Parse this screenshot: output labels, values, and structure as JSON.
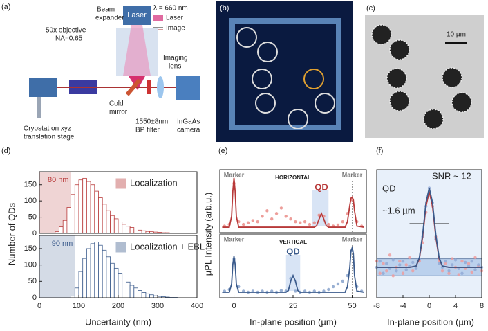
{
  "panel_labels": [
    "(a)",
    "(b)",
    "(c)"
  ],
  "setup": {
    "laser": "Laser",
    "wavelength": "λ = 660 nm",
    "legend": [
      "Laser",
      "Image"
    ],
    "beam_expander": [
      "Beam",
      "expander"
    ],
    "objective": [
      "50x objective",
      "NA=0.65"
    ],
    "imaging_lens": [
      "Imaging",
      "lens"
    ],
    "cold_mirror": [
      "Cold",
      "mirror"
    ],
    "filter": [
      "1550±8nm",
      "BP filter"
    ],
    "camera": [
      "InGaAs",
      "camera"
    ],
    "cryostat": [
      "Cryostat on xyz",
      "translation stage"
    ]
  },
  "scale_bar": "10 µm",
  "chart_data": [
    {
      "type": "histogram",
      "label": "(d)",
      "xlabel": "Uncertainty (nm)",
      "ylabel": "Number of QDs",
      "bins": [
        0,
        10,
        20,
        30,
        40,
        50,
        60,
        70,
        80,
        90,
        100,
        110,
        120,
        130,
        140,
        150,
        160,
        170,
        180,
        190,
        200,
        210,
        220,
        230,
        240,
        250,
        260,
        270,
        280,
        290,
        300,
        310,
        320,
        330,
        340,
        350,
        360,
        370,
        380,
        390,
        400
      ],
      "xlim": [
        0,
        400
      ],
      "xticks": [
        0,
        100,
        200,
        300,
        400
      ],
      "ylim": [
        0,
        190
      ],
      "yticks": [
        0,
        50,
        100,
        150
      ],
      "series": [
        {
          "name": "Localization",
          "color": "#b83a3a",
          "shade": {
            "value": 80,
            "label": "80 nm"
          },
          "values": [
            0,
            0,
            0,
            0,
            5,
            20,
            40,
            80,
            120,
            150,
            165,
            170,
            160,
            150,
            130,
            110,
            90,
            70,
            55,
            45,
            35,
            28,
            22,
            18,
            14,
            10,
            8,
            6,
            5,
            4,
            3,
            2,
            2,
            1,
            1,
            0,
            0,
            0,
            0,
            0
          ]
        },
        {
          "name": "Localization + EBL",
          "color": "#3b5b8c",
          "shade": {
            "value": 90,
            "label": "90 nm"
          },
          "values": [
            0,
            0,
            0,
            0,
            0,
            0,
            0,
            0,
            5,
            30,
            80,
            120,
            150,
            165,
            170,
            160,
            145,
            125,
            105,
            90,
            75,
            60,
            48,
            38,
            30,
            22,
            16,
            12,
            9,
            6,
            4,
            3,
            2,
            1,
            1,
            0,
            0,
            0,
            0,
            0
          ]
        }
      ]
    },
    {
      "type": "line",
      "label": "(e)",
      "xlabel": "In-plane position (µm)",
      "ylabel": "µPL Intensity (arb.u.)",
      "xlim": [
        -6,
        56
      ],
      "xticks": [
        0,
        25,
        50
      ],
      "ylim": [
        0,
        1.15
      ],
      "subplots": [
        {
          "title": "HORIZONTAL",
          "markers": [
            {
              "text": "Marker",
              "x": 0
            },
            {
              "text": "Marker",
              "x": 50
            }
          ],
          "qd": {
            "text": "QD",
            "x": 37,
            "shade": [
              33,
              40
            ]
          },
          "series": [
            {
              "style": "dots",
              "color": "#e8847f",
              "x": [
                -4,
                -2,
                0,
                2,
                4,
                6,
                8,
                10,
                12,
                14,
                16,
                18,
                20,
                22,
                24,
                26,
                28,
                30,
                32,
                34,
                36,
                38,
                40,
                42,
                44,
                46,
                48,
                50,
                52,
                54
              ],
              "values": [
                0.12,
                0.15,
                0.9,
                0.2,
                0.15,
                0.18,
                0.22,
                0.2,
                0.3,
                0.4,
                0.25,
                0.35,
                0.45,
                0.3,
                0.25,
                0.2,
                0.18,
                0.2,
                0.15,
                0.18,
                0.32,
                0.3,
                0.15,
                0.12,
                0.14,
                0.2,
                0.35,
                0.6,
                0.2,
                0.12
              ]
            },
            {
              "style": "line",
              "color": "#b83a3a",
              "x": [
                -5,
                -2,
                -1,
                -0.5,
                0,
                0.5,
                1,
                2,
                34,
                35,
                36,
                37,
                38,
                39,
                40,
                47,
                48,
                49,
                49.5,
                50,
                50.5,
                51,
                52,
                55
              ],
              "values": [
                0.1,
                0.1,
                0.3,
                0.75,
                1.0,
                0.75,
                0.3,
                0.1,
                0.1,
                0.13,
                0.25,
                0.35,
                0.25,
                0.13,
                0.1,
                0.1,
                0.2,
                0.5,
                0.63,
                0.65,
                0.6,
                0.4,
                0.12,
                0.1
              ]
            }
          ]
        },
        {
          "title": "VERTICAL",
          "markers": [
            {
              "text": "Marker",
              "x": 0
            },
            {
              "text": "Marker",
              "x": 50
            }
          ],
          "qd": {
            "text": "QD",
            "x": 25,
            "shade": [
              22,
              28
            ]
          },
          "series": [
            {
              "style": "dots",
              "color": "#7f9cc8",
              "x": [
                -4,
                -2,
                0,
                2,
                4,
                6,
                8,
                10,
                12,
                14,
                16,
                18,
                20,
                22,
                24,
                26,
                28,
                30,
                32,
                34,
                36,
                38,
                40,
                42,
                44,
                46,
                48,
                50,
                52,
                54
              ],
              "values": [
                0.12,
                0.15,
                0.7,
                0.2,
                0.12,
                0.1,
                0.12,
                0.1,
                0.12,
                0.1,
                0.12,
                0.1,
                0.13,
                0.12,
                0.35,
                0.12,
                0.1,
                0.12,
                0.1,
                0.12,
                0.1,
                0.12,
                0.15,
                0.2,
                0.25,
                0.3,
                0.4,
                0.85,
                0.2,
                0.12
              ]
            },
            {
              "style": "line",
              "color": "#3b5b8c",
              "x": [
                -5,
                -2,
                -1,
                -0.5,
                0,
                0.5,
                1,
                2,
                22,
                23,
                24,
                25,
                26,
                27,
                28,
                47,
                48,
                49,
                49.5,
                50,
                50.5,
                51,
                52,
                55
              ],
              "values": [
                0.1,
                0.1,
                0.25,
                0.6,
                0.75,
                0.6,
                0.25,
                0.1,
                0.1,
                0.13,
                0.3,
                0.4,
                0.3,
                0.13,
                0.1,
                0.1,
                0.2,
                0.55,
                0.85,
                0.9,
                0.8,
                0.4,
                0.12,
                0.1
              ]
            }
          ]
        }
      ]
    },
    {
      "type": "line",
      "label": "(f)",
      "xlabel": "In-plane position (µm)",
      "xlim": [
        -8,
        8
      ],
      "xticks": [
        -8,
        -4,
        0,
        4,
        8
      ],
      "ylim": [
        0,
        1.05
      ],
      "noise_band": [
        0.18,
        0.32
      ],
      "annotations": [
        "QD",
        "SNR ~ 12",
        "~1.6 µm"
      ],
      "series": [
        {
          "style": "dots",
          "color": "#f09a9a",
          "x": [
            -8,
            -7.5,
            -7,
            -6.5,
            -6,
            -5.5,
            -5,
            -4.5,
            -4,
            -3.5,
            -3,
            -2.5,
            -2,
            -1.5,
            -1,
            -0.5,
            0,
            0.5,
            1,
            1.5,
            2,
            2.5,
            3,
            3.5,
            4,
            4.5,
            5,
            5.5,
            6,
            6.5,
            7,
            7.5,
            8
          ],
          "values": [
            0.3,
            0.2,
            0.28,
            0.22,
            0.35,
            0.18,
            0.25,
            0.3,
            0.2,
            0.27,
            0.33,
            0.22,
            0.26,
            0.3,
            0.45,
            0.7,
            0.85,
            0.75,
            0.5,
            0.3,
            0.22,
            0.28,
            0.2,
            0.32,
            0.25,
            0.19,
            0.3,
            0.24,
            0.28,
            0.21,
            0.33,
            0.26,
            0.22
          ]
        },
        {
          "style": "dots",
          "color": "#8ea8d4",
          "x": [
            -8,
            -7.5,
            -7,
            -6.5,
            -6,
            -5.5,
            -5,
            -4.5,
            -4,
            -3.5,
            -3,
            -2.5,
            -2,
            -1.5,
            -1,
            -0.5,
            0,
            0.5,
            1,
            1.5,
            2,
            2.5,
            3,
            3.5,
            4,
            4.5,
            5,
            5.5,
            6,
            6.5,
            7,
            7.5,
            8
          ],
          "values": [
            0.25,
            0.3,
            0.2,
            0.28,
            0.24,
            0.31,
            0.22,
            0.27,
            0.3,
            0.23,
            0.26,
            0.29,
            0.24,
            0.32,
            0.5,
            0.75,
            0.9,
            0.78,
            0.48,
            0.28,
            0.25,
            0.3,
            0.22,
            0.27,
            0.31,
            0.24,
            0.2,
            0.29,
            0.26,
            0.3,
            0.23,
            0.27,
            0.25
          ]
        },
        {
          "style": "line",
          "color": "#b83a3a",
          "x": [
            -8,
            -3,
            -2,
            -1.5,
            -1,
            -0.5,
            0,
            0.5,
            1,
            1.5,
            2,
            3,
            8
          ],
          "values": [
            0.25,
            0.25,
            0.26,
            0.32,
            0.5,
            0.75,
            0.87,
            0.75,
            0.5,
            0.32,
            0.26,
            0.25,
            0.25
          ]
        },
        {
          "style": "line",
          "color": "#3b5b8c",
          "x": [
            -8,
            -3,
            -2,
            -1.5,
            -1,
            -0.5,
            0,
            0.5,
            1,
            1.5,
            2,
            3,
            8
          ],
          "values": [
            0.25,
            0.25,
            0.26,
            0.33,
            0.52,
            0.78,
            0.9,
            0.78,
            0.52,
            0.33,
            0.26,
            0.25,
            0.25
          ]
        }
      ]
    }
  ]
}
